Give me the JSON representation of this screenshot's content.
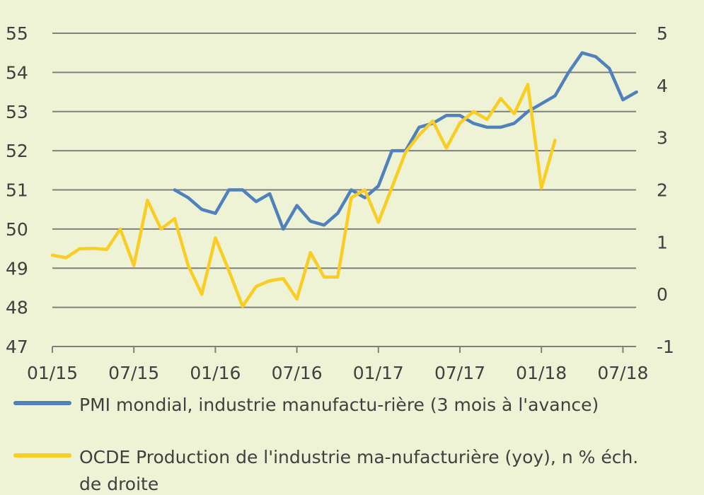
{
  "chart_data": {
    "type": "line",
    "title": "",
    "xlabel": "",
    "ylabel": "",
    "x_tick_labels": [
      "01/15",
      "07/15",
      "01/16",
      "07/16",
      "01/17",
      "07/17",
      "01/18",
      "07/18"
    ],
    "y_left": {
      "range": [
        47,
        55
      ],
      "ticks": [
        "47",
        "48",
        "49",
        "50",
        "51",
        "52",
        "53",
        "54",
        "55"
      ]
    },
    "y_right": {
      "range": [
        -1,
        5
      ],
      "ticks": [
        "-1",
        "0",
        "1",
        "2",
        "3",
        "4",
        "5"
      ]
    },
    "grid": "horizontal",
    "legend_position": "bottom",
    "x_start": "01/15",
    "series": [
      {
        "name": "PMI mondial, industrie manufactu-rière (3 mois à l'avance)",
        "axis": "left",
        "color": "#4f81bd",
        "x": [
          "10/15",
          "11/15",
          "12/15",
          "01/16",
          "02/16",
          "03/16",
          "04/16",
          "05/16",
          "06/16",
          "07/16",
          "08/16",
          "09/16",
          "10/16",
          "11/16",
          "12/16",
          "01/17",
          "02/17",
          "03/17",
          "04/17",
          "05/17",
          "06/17",
          "07/17",
          "08/17",
          "09/17",
          "10/17",
          "11/17",
          "12/17",
          "01/18",
          "02/18",
          "03/18",
          "04/18",
          "05/18",
          "06/18",
          "07/18",
          "08/18"
        ],
        "values": [
          51.0,
          50.8,
          50.5,
          50.4,
          51.0,
          51.0,
          50.7,
          50.9,
          50.0,
          50.6,
          50.2,
          50.1,
          50.4,
          51.0,
          50.8,
          51.1,
          52.0,
          52.0,
          52.6,
          52.7,
          52.9,
          52.9,
          52.7,
          52.6,
          52.6,
          52.7,
          53.0,
          53.2,
          53.4,
          54.0,
          54.5,
          54.4,
          54.1,
          53.3,
          53.5
        ]
      },
      {
        "name": "OCDE Production de l'industrie ma-nufacturière (yoy), n % éch. de droite",
        "axis": "right",
        "color": "#f9cd22",
        "x": [
          "01/15",
          "02/15",
          "03/15",
          "04/15",
          "05/15",
          "06/15",
          "07/15",
          "08/15",
          "09/15",
          "10/15",
          "11/15",
          "12/15",
          "01/16",
          "02/16",
          "03/16",
          "04/16",
          "05/16",
          "06/16",
          "07/16",
          "08/16",
          "09/16",
          "10/16",
          "11/16",
          "12/16",
          "01/17",
          "02/17",
          "03/17",
          "04/17",
          "05/17",
          "06/17",
          "07/17",
          "08/17",
          "09/17",
          "10/17",
          "11/17",
          "12/17",
          "01/18",
          "02/18"
        ],
        "values": [
          0.75,
          0.7,
          0.87,
          0.88,
          0.86,
          1.25,
          0.55,
          1.8,
          1.25,
          1.45,
          0.55,
          0.0,
          1.08,
          0.45,
          -0.23,
          0.15,
          0.26,
          0.3,
          -0.09,
          0.8,
          0.33,
          0.33,
          1.85,
          2.0,
          1.38,
          2.05,
          2.72,
          3.05,
          3.32,
          2.8,
          3.28,
          3.5,
          3.35,
          3.75,
          3.46,
          4.02,
          2.03,
          2.95
        ]
      }
    ]
  }
}
